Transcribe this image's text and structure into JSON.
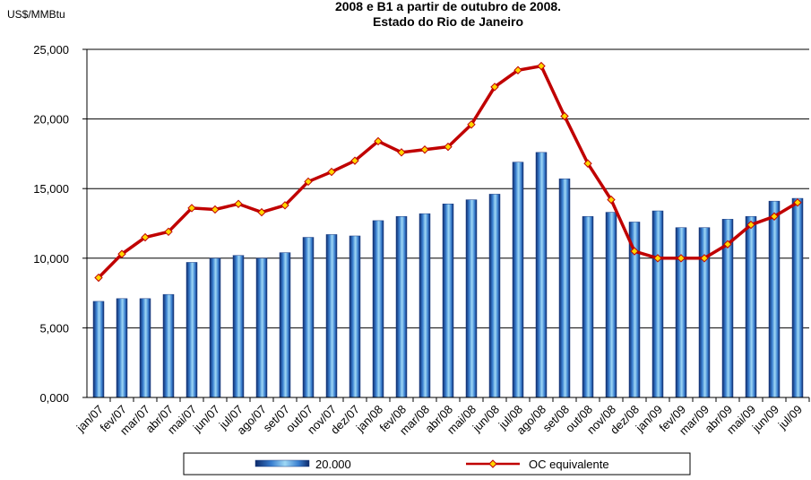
{
  "chart_data": {
    "type": "bar-line",
    "title": "2008 e B1 a partir de outubro de 2008.",
    "subtitle": "Estado do Rio de Janeiro",
    "y_label": "US$/MMBtu",
    "categories": [
      "jan/07",
      "fev/07",
      "mar/07",
      "abr/07",
      "mai/07",
      "jun/07",
      "jul/07",
      "ago/07",
      "set/07",
      "out/07",
      "nov/07",
      "dez/07",
      "jan/08",
      "fev/08",
      "mar/08",
      "abr/08",
      "mai/08",
      "jun/08",
      "jul/08",
      "ago/08",
      "set/08",
      "out/08",
      "nov/08",
      "dez/08",
      "jan/09",
      "fev/09",
      "mar/09",
      "abr/09",
      "mai/09",
      "jun/09",
      "jul/09"
    ],
    "series": [
      {
        "name": "20.000",
        "type": "bar",
        "color": "#3a7fd0",
        "values": [
          6.9,
          7.1,
          7.1,
          7.4,
          9.7,
          10.0,
          10.2,
          10.0,
          10.4,
          11.5,
          11.7,
          11.6,
          12.7,
          13.0,
          13.2,
          13.9,
          14.2,
          14.6,
          16.9,
          17.6,
          15.7,
          13.0,
          13.3,
          12.6,
          13.4,
          12.2,
          12.2,
          12.8,
          13.0,
          14.1,
          14.3
        ]
      },
      {
        "name": "OC equivalente",
        "type": "line",
        "color": "#c00000",
        "values": [
          8.6,
          10.3,
          11.5,
          11.9,
          13.6,
          13.5,
          13.9,
          13.3,
          13.8,
          15.5,
          16.2,
          17.0,
          18.4,
          17.6,
          17.8,
          18.0,
          19.6,
          22.3,
          23.5,
          23.8,
          20.2,
          16.8,
          14.2,
          10.5,
          10.0,
          10.0,
          10.0,
          11.0,
          12.4,
          13.0,
          14.0
        ]
      }
    ],
    "ylim": [
      0,
      25
    ],
    "yticks": [
      {
        "value": 0,
        "label": "0,000"
      },
      {
        "value": 5,
        "label": "5,000"
      },
      {
        "value": 10,
        "label": "10,000"
      },
      {
        "value": 15,
        "label": "15,000"
      },
      {
        "value": 20,
        "label": "20,000"
      },
      {
        "value": 25,
        "label": "25,000"
      }
    ],
    "grid": true
  }
}
